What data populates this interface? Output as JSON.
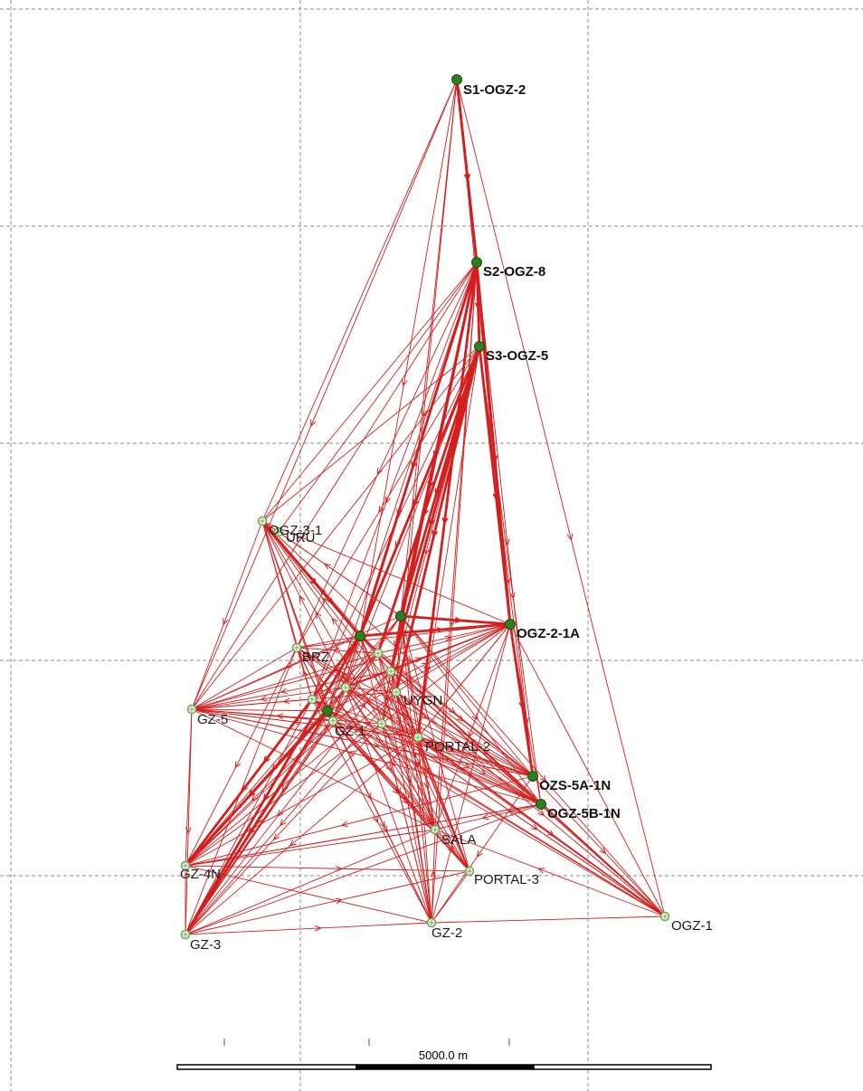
{
  "colors": {
    "line": "#d41f1f",
    "grid": "#8a8a8a",
    "station_fixed": "#2e7d1e",
    "station_open": "#6aa84f",
    "text": "#1a1a1a"
  },
  "scale_bar": {
    "label": "5000.0 m"
  },
  "stations": [
    {
      "id": "S1",
      "label": "S1-OGZ-2",
      "type": "fixed",
      "bold": true
    },
    {
      "id": "S2",
      "label": "S2-OGZ-8",
      "type": "fixed",
      "bold": true
    },
    {
      "id": "S3",
      "label": "S3-OGZ-5",
      "type": "fixed",
      "bold": true
    },
    {
      "id": "OGZ31",
      "label": "OGZ-3-1",
      "type": "open",
      "bold": false
    },
    {
      "id": "URU",
      "label": "URU",
      "type": "open",
      "bold": false
    },
    {
      "id": "OGZ21A",
      "label": "OGZ-2-1A",
      "type": "fixed",
      "bold": true
    },
    {
      "id": "OZS5A",
      "label": "OZS-5A-1N",
      "type": "fixed",
      "bold": true
    },
    {
      "id": "OGZ5B",
      "label": "OGZ-5B-1N",
      "type": "fixed",
      "bold": true
    },
    {
      "id": "OGZ1",
      "label": "OGZ-1",
      "type": "open",
      "bold": false
    },
    {
      "id": "GZ5",
      "label": "GZ-5",
      "type": "open",
      "bold": false
    },
    {
      "id": "GZ4N",
      "label": "GZ-4N",
      "type": "open",
      "bold": false
    },
    {
      "id": "GZ3",
      "label": "GZ-3",
      "type": "open",
      "bold": false
    },
    {
      "id": "GZ2",
      "label": "GZ-2",
      "type": "open",
      "bold": false
    },
    {
      "id": "SALA",
      "label": "SALA",
      "type": "open",
      "bold": false
    },
    {
      "id": "PORTAL3",
      "label": "PORTAL-3",
      "type": "open",
      "bold": false
    },
    {
      "id": "PORTAL2",
      "label": "PORTAL-2",
      "type": "open",
      "bold": false
    },
    {
      "id": "UYGN",
      "label": "UYGN",
      "type": "open",
      "bold": false
    },
    {
      "id": "GZ1",
      "label": "GZ-1",
      "type": "open",
      "bold": false
    },
    {
      "id": "BRZ",
      "label": "BRZ",
      "type": "open",
      "bold": false
    },
    {
      "id": "CA",
      "label": "",
      "type": "fixed",
      "bold": false
    },
    {
      "id": "CB",
      "label": "",
      "type": "fixed",
      "bold": false
    },
    {
      "id": "CC",
      "label": "",
      "type": "open",
      "bold": false
    },
    {
      "id": "CD",
      "label": "",
      "type": "open",
      "bold": false
    },
    {
      "id": "CE",
      "label": "",
      "type": "fixed",
      "bold": false
    },
    {
      "id": "CF",
      "label": "",
      "type": "open",
      "bold": false
    },
    {
      "id": "CG",
      "label": "",
      "type": "open",
      "bold": false
    },
    {
      "id": "CH",
      "label": "",
      "type": "open",
      "bold": false
    }
  ]
}
